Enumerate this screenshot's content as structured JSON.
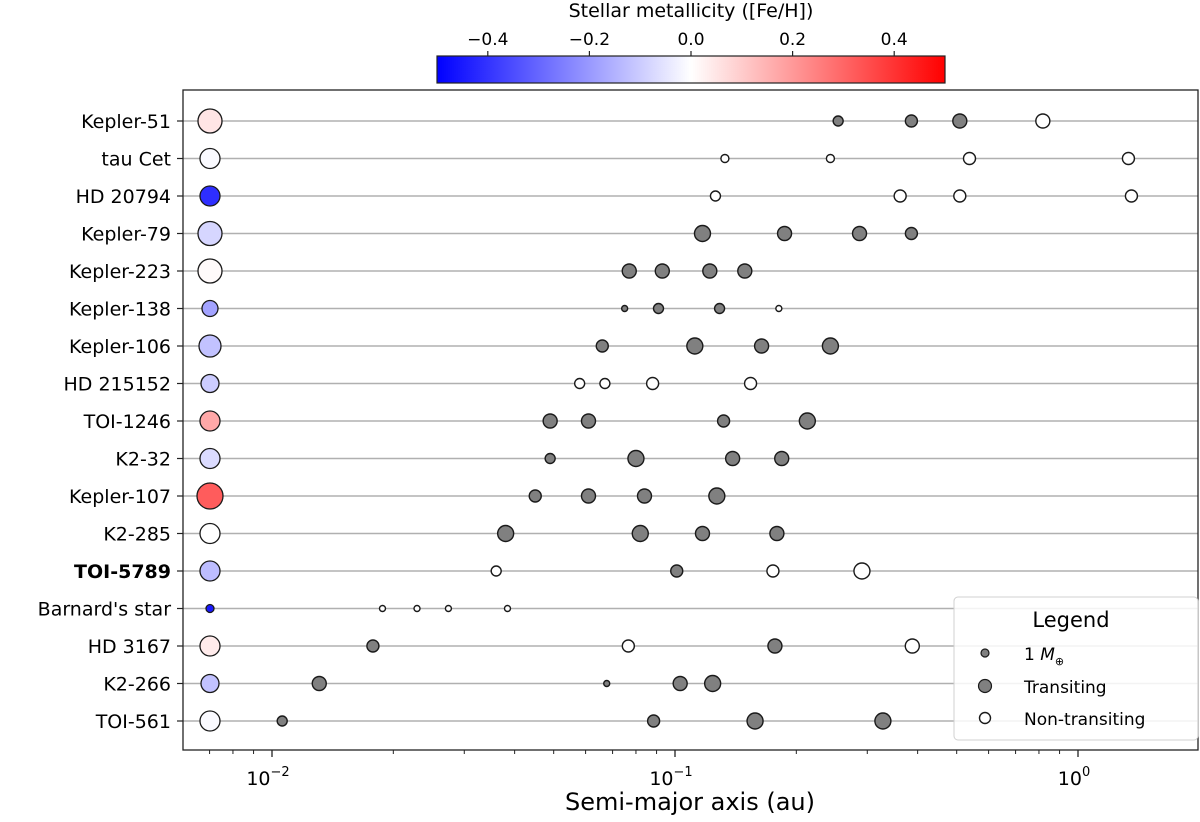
{
  "chart_data": {
    "type": "scatter",
    "title": "",
    "xlabel": "Semi-major axis (au)",
    "ylabel": "",
    "xscale": "log",
    "xlim": [
      0.006,
      1.99
    ],
    "xticks": [
      {
        "value": 0.01,
        "label_base": "10",
        "label_exp": "−2"
      },
      {
        "value": 0.1,
        "label_base": "10",
        "label_exp": "−1"
      },
      {
        "value": 1,
        "label_base": "10",
        "label_exp": "0"
      }
    ],
    "grid": "horizontal",
    "colorbar": {
      "label": "Stellar metallicity ([Fe/H])",
      "range": [
        -0.5,
        0.5
      ],
      "ticks": [
        "−0.4",
        "−0.2",
        "0.0",
        "0.2",
        "0.4"
      ],
      "tick_values": [
        -0.4,
        -0.2,
        0.0,
        0.2,
        0.4
      ],
      "colormap": "bwr",
      "position": "top"
    },
    "legend": {
      "title": "Legend",
      "position": "lower right",
      "entries": [
        {
          "label": "1 M⊕",
          "label_main": "1 ",
          "label_italic": "M",
          "label_sub": "⊕",
          "marker": "small-filled",
          "color": "#808080"
        },
        {
          "label": "Transiting",
          "marker": "filled",
          "color": "#808080"
        },
        {
          "label": "Non-transiting",
          "marker": "open",
          "color": "#ffffff"
        }
      ]
    },
    "colors": {
      "transiting": "#808080",
      "non_transiting": "#ffffff",
      "edge": "#1a1a1a",
      "grid": "#b0b0b0"
    },
    "systems": [
      {
        "name": "Kepler-51",
        "bold": false,
        "feh": 0.05,
        "star_r": 12,
        "planets": [
          {
            "a": 0.254,
            "r": 5,
            "transiting": true
          },
          {
            "a": 0.386,
            "r": 6,
            "transiting": true
          },
          {
            "a": 0.509,
            "r": 7,
            "transiting": true
          },
          {
            "a": 0.818,
            "r": 7,
            "transiting": false
          }
        ]
      },
      {
        "name": "tau Cet",
        "bold": false,
        "feh": -0.01,
        "star_r": 10,
        "planets": [
          {
            "a": 0.133,
            "r": 4,
            "transiting": false
          },
          {
            "a": 0.243,
            "r": 4,
            "transiting": false
          },
          {
            "a": 0.538,
            "r": 6,
            "transiting": false
          },
          {
            "a": 1.334,
            "r": 6,
            "transiting": false
          }
        ]
      },
      {
        "name": "HD 20794",
        "bold": false,
        "feh": -0.41,
        "star_r": 10,
        "planets": [
          {
            "a": 0.126,
            "r": 5,
            "transiting": false
          },
          {
            "a": 0.362,
            "r": 6,
            "transiting": false
          },
          {
            "a": 0.509,
            "r": 6,
            "transiting": false
          },
          {
            "a": 1.357,
            "r": 6,
            "transiting": false
          }
        ]
      },
      {
        "name": "Kepler-79",
        "bold": false,
        "feh": -0.08,
        "star_r": 12,
        "planets": [
          {
            "a": 0.117,
            "r": 8,
            "transiting": true
          },
          {
            "a": 0.187,
            "r": 7,
            "transiting": true
          },
          {
            "a": 0.287,
            "r": 7,
            "transiting": true
          },
          {
            "a": 0.386,
            "r": 6,
            "transiting": true
          }
        ]
      },
      {
        "name": "Kepler-223",
        "bold": false,
        "feh": 0.01,
        "star_r": 12,
        "planets": [
          {
            "a": 0.077,
            "r": 7,
            "transiting": true
          },
          {
            "a": 0.093,
            "r": 7,
            "transiting": true
          },
          {
            "a": 0.122,
            "r": 7,
            "transiting": true
          },
          {
            "a": 0.149,
            "r": 7,
            "transiting": true
          }
        ]
      },
      {
        "name": "Kepler-138",
        "bold": false,
        "feh": -0.18,
        "star_r": 8,
        "planets": [
          {
            "a": 0.075,
            "r": 3,
            "transiting": true
          },
          {
            "a": 0.091,
            "r": 5,
            "transiting": true
          },
          {
            "a": 0.129,
            "r": 5,
            "transiting": true
          },
          {
            "a": 0.181,
            "r": 3,
            "transiting": false
          }
        ]
      },
      {
        "name": "Kepler-106",
        "bold": false,
        "feh": -0.12,
        "star_r": 11,
        "planets": [
          {
            "a": 0.066,
            "r": 6,
            "transiting": true
          },
          {
            "a": 0.112,
            "r": 8,
            "transiting": true
          },
          {
            "a": 0.164,
            "r": 7,
            "transiting": true
          },
          {
            "a": 0.243,
            "r": 8,
            "transiting": true
          }
        ]
      },
      {
        "name": "HD 215152",
        "bold": false,
        "feh": -0.1,
        "star_r": 9,
        "planets": [
          {
            "a": 0.058,
            "r": 5,
            "transiting": false
          },
          {
            "a": 0.067,
            "r": 5,
            "transiting": false
          },
          {
            "a": 0.088,
            "r": 6,
            "transiting": false
          },
          {
            "a": 0.154,
            "r": 6,
            "transiting": false
          }
        ]
      },
      {
        "name": "TOI-1246",
        "bold": false,
        "feh": 0.17,
        "star_r": 10,
        "planets": [
          {
            "a": 0.049,
            "r": 7,
            "transiting": true
          },
          {
            "a": 0.061,
            "r": 7,
            "transiting": true
          },
          {
            "a": 0.132,
            "r": 6,
            "transiting": true
          },
          {
            "a": 0.213,
            "r": 8,
            "transiting": true
          }
        ]
      },
      {
        "name": "K2-32",
        "bold": false,
        "feh": -0.07,
        "star_r": 10,
        "planets": [
          {
            "a": 0.049,
            "r": 5,
            "transiting": true
          },
          {
            "a": 0.08,
            "r": 8,
            "transiting": true
          },
          {
            "a": 0.139,
            "r": 7,
            "transiting": true
          },
          {
            "a": 0.184,
            "r": 7,
            "transiting": true
          }
        ]
      },
      {
        "name": "Kepler-107",
        "bold": false,
        "feh": 0.32,
        "star_r": 13,
        "planets": [
          {
            "a": 0.045,
            "r": 6,
            "transiting": true
          },
          {
            "a": 0.061,
            "r": 7,
            "transiting": true
          },
          {
            "a": 0.084,
            "r": 7,
            "transiting": true
          },
          {
            "a": 0.127,
            "r": 8,
            "transiting": true
          }
        ]
      },
      {
        "name": "K2-285",
        "bold": false,
        "feh": 0.0,
        "star_r": 10,
        "planets": [
          {
            "a": 0.038,
            "r": 8,
            "transiting": true
          },
          {
            "a": 0.082,
            "r": 8,
            "transiting": true
          },
          {
            "a": 0.117,
            "r": 7,
            "transiting": true
          },
          {
            "a": 0.179,
            "r": 7,
            "transiting": true
          }
        ]
      },
      {
        "name": "TOI-5789",
        "bold": true,
        "feh": -0.13,
        "star_r": 10,
        "planets": [
          {
            "a": 0.036,
            "r": 5,
            "transiting": false
          },
          {
            "a": 0.101,
            "r": 6,
            "transiting": true
          },
          {
            "a": 0.175,
            "r": 6,
            "transiting": false
          },
          {
            "a": 0.291,
            "r": 8,
            "transiting": false
          }
        ]
      },
      {
        "name": "Barnard's star",
        "bold": false,
        "feh": -0.45,
        "star_r": 4,
        "planets": [
          {
            "a": 0.0188,
            "r": 3,
            "transiting": false
          },
          {
            "a": 0.0229,
            "r": 3,
            "transiting": false
          },
          {
            "a": 0.0274,
            "r": 3,
            "transiting": false
          },
          {
            "a": 0.0384,
            "r": 3,
            "transiting": false
          }
        ]
      },
      {
        "name": "HD 3167",
        "bold": false,
        "feh": 0.04,
        "star_r": 10,
        "planets": [
          {
            "a": 0.0178,
            "r": 6,
            "transiting": true
          },
          {
            "a": 0.0766,
            "r": 6,
            "transiting": false
          },
          {
            "a": 0.177,
            "r": 7,
            "transiting": true
          },
          {
            "a": 0.388,
            "r": 7,
            "transiting": false
          }
        ]
      },
      {
        "name": "K2-266",
        "bold": false,
        "feh": -0.12,
        "star_r": 9,
        "planets": [
          {
            "a": 0.0131,
            "r": 7,
            "transiting": true
          },
          {
            "a": 0.0677,
            "r": 3,
            "transiting": true
          },
          {
            "a": 0.103,
            "r": 7,
            "transiting": true
          },
          {
            "a": 0.124,
            "r": 8,
            "transiting": true
          }
        ]
      },
      {
        "name": "TOI-561",
        "bold": false,
        "feh": -0.01,
        "star_r": 10,
        "planets": [
          {
            "a": 0.0106,
            "r": 5,
            "transiting": true
          },
          {
            "a": 0.0885,
            "r": 6,
            "transiting": true
          },
          {
            "a": 0.158,
            "r": 8,
            "transiting": true
          },
          {
            "a": 0.328,
            "r": 8,
            "transiting": true
          }
        ]
      }
    ]
  }
}
